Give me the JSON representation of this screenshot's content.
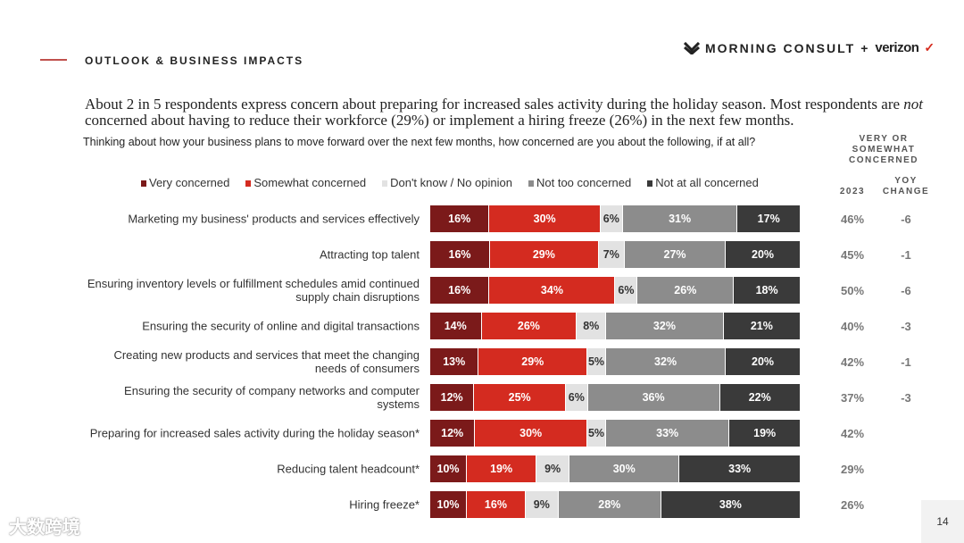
{
  "header": {
    "section": "OUTLOOK & BUSINESS IMPACTS",
    "logo_brand": "MORNING CONSULT",
    "logo_plus": "+",
    "logo_partner": "verizon"
  },
  "headline": {
    "part1": "About 2 in 5 respondents express concern about preparing for increased sales activity during the holiday season. Most respondents are ",
    "emph": "not",
    "part2": " concerned about having to reduce their workforce (29%) or implement a hiring freeze (26%) in the next few months."
  },
  "question": "Thinking about how your business plans to move forward over the next few months, how concerned are you about the following, if at all?",
  "column_headers": {
    "very_or_somewhat": "VERY OR SOMEWHAT CONCERNED",
    "year": "2023",
    "yoy": "YOY CHANGE"
  },
  "page_number": "14",
  "watermark": "大数跨境",
  "chart_data": {
    "type": "bar",
    "orientation": "horizontal-stacked",
    "series": [
      {
        "name": "Very concerned",
        "color": "#7b1a1a",
        "values": [
          16,
          16,
          16,
          14,
          13,
          12,
          12,
          10,
          10
        ]
      },
      {
        "name": "Somewhat concerned",
        "color": "#d42b20",
        "values": [
          30,
          29,
          34,
          26,
          29,
          25,
          30,
          19,
          16
        ]
      },
      {
        "name": "Don't know / No opinion",
        "color": "#e2e2e2",
        "values": [
          6,
          7,
          6,
          8,
          5,
          6,
          5,
          9,
          9
        ]
      },
      {
        "name": "Not too concerned",
        "color": "#8c8c8c",
        "values": [
          31,
          27,
          26,
          32,
          32,
          36,
          33,
          30,
          28
        ]
      },
      {
        "name": "Not at all concerned",
        "color": "#3a3a3a",
        "values": [
          17,
          20,
          18,
          21,
          20,
          22,
          19,
          33,
          38
        ]
      }
    ],
    "categories": [
      "Marketing my business' products and services effectively",
      "Attracting top talent",
      "Ensuring inventory levels or fulfillment schedules amid continued supply chain disruptions",
      "Ensuring the security of online and digital transactions",
      "Creating new products and services that meet the changing needs of consumers",
      "Ensuring the security of company networks and computer systems",
      "Preparing for increased sales activity during the holiday season*",
      "Reducing talent headcount*",
      "Hiring freeze*"
    ],
    "very_or_somewhat_2023": [
      "46%",
      "45%",
      "50%",
      "40%",
      "42%",
      "37%",
      "42%",
      "29%",
      "26%"
    ],
    "yoy_change": [
      "-6",
      "-1",
      "-6",
      "-3",
      "-1",
      "-3",
      "",
      "",
      ""
    ],
    "legend_placement": "top"
  }
}
